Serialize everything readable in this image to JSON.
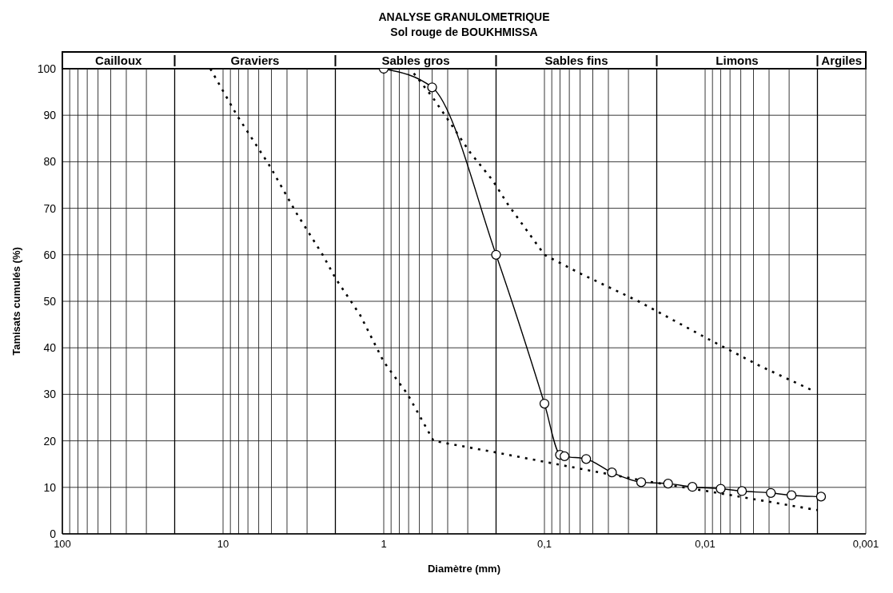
{
  "chart_data": {
    "type": "line",
    "title": "ANALYSE GRANULOMETRIQUE",
    "subtitle": "Sol rouge de BOUKHMISSA",
    "xlabel": "Diamètre (mm)",
    "ylabel": "Tamisats cumulés (%)",
    "log": "x",
    "xlim": [
      100,
      0.001
    ],
    "ylim": [
      0,
      100
    ],
    "xticks": [
      {
        "value": 100,
        "label": "100"
      },
      {
        "value": 90,
        "label": null
      },
      {
        "value": 80,
        "label": null
      },
      {
        "value": 70,
        "label": null
      },
      {
        "value": 60,
        "label": null
      },
      {
        "value": 50,
        "label": null
      },
      {
        "value": 40,
        "label": null
      },
      {
        "value": 30,
        "label": null
      },
      {
        "value": 10,
        "label": "10"
      },
      {
        "value": 9,
        "label": null
      },
      {
        "value": 8,
        "label": null
      },
      {
        "value": 7,
        "label": null
      },
      {
        "value": 6,
        "label": null
      },
      {
        "value": 5,
        "label": null
      },
      {
        "value": 4,
        "label": null
      },
      {
        "value": 3,
        "label": null
      },
      {
        "value": 1,
        "label": "1"
      },
      {
        "value": 0.9,
        "label": null
      },
      {
        "value": 0.8,
        "label": null
      },
      {
        "value": 0.7,
        "label": null
      },
      {
        "value": 0.6,
        "label": null
      },
      {
        "value": 0.5,
        "label": null
      },
      {
        "value": 0.4,
        "label": null
      },
      {
        "value": 0.3,
        "label": null
      },
      {
        "value": 0.1,
        "label": "0,1"
      },
      {
        "value": 0.09,
        "label": null
      },
      {
        "value": 0.08,
        "label": null
      },
      {
        "value": 0.07,
        "label": null
      },
      {
        "value": 0.06,
        "label": null
      },
      {
        "value": 0.05,
        "label": null
      },
      {
        "value": 0.04,
        "label": null
      },
      {
        "value": 0.03,
        "label": null
      },
      {
        "value": 0.01,
        "label": "0,01"
      },
      {
        "value": 0.009,
        "label": null
      },
      {
        "value": 0.008,
        "label": null
      },
      {
        "value": 0.007,
        "label": null
      },
      {
        "value": 0.006,
        "label": null
      },
      {
        "value": 0.005,
        "label": null
      },
      {
        "value": 0.004,
        "label": null
      },
      {
        "value": 0.003,
        "label": null
      },
      {
        "value": 0.001,
        "label": "0,001"
      }
    ],
    "yticks": [
      0,
      10,
      20,
      30,
      40,
      50,
      60,
      70,
      80,
      90,
      100
    ],
    "grid": true,
    "annotations": [
      "Cailloux",
      "Graviers",
      "Sables gros",
      "Sables fins",
      "Limons",
      "Argiles"
    ],
    "ref_lines": [
      {
        "axis": "x",
        "value": 20,
        "color": "#000000"
      },
      {
        "axis": "x",
        "value": 2,
        "color": "#000000"
      },
      {
        "axis": "x",
        "value": 0.2,
        "color": "#000000"
      },
      {
        "axis": "x",
        "value": 0.02,
        "color": "#000000"
      },
      {
        "axis": "x",
        "value": 0.002,
        "color": "#000000"
      }
    ],
    "series": [
      {
        "color": "#000000",
        "marker": "none",
        "line_style": "dotted",
        "x": [
          12,
          8.2,
          5.1,
          3.5,
          2.4,
          2,
          1.4,
          1,
          0.71,
          0.49,
          0.2,
          0.1,
          0.047,
          0.023,
          0.009,
          0.0037,
          0.002
        ],
        "values": [
          100,
          90,
          79,
          69,
          60,
          55,
          47,
          37,
          30,
          20,
          17.5,
          15.5,
          13.3,
          11.3,
          9,
          6.7,
          5.1
        ]
      },
      {
        "color": "#000000",
        "marker": "none",
        "line_style": "dotted",
        "x": [
          0.65,
          0.5,
          0.38,
          0.29,
          0.21,
          0.17,
          0.1,
          0.06,
          0.026,
          0.0097,
          0.0045,
          0.0022
        ],
        "values": [
          99,
          94,
          88,
          82,
          76,
          71,
          60,
          56,
          50,
          42,
          36,
          31
        ]
      },
      {
        "color": "#000000",
        "marker": "circle",
        "line_style": "solid",
        "x": [
          1,
          0.5,
          0.2,
          0.1,
          0.08,
          0.075,
          0.055,
          0.038,
          0.025,
          0.017,
          0.012,
          0.008,
          0.0059,
          0.0039,
          0.0029,
          0.0019
        ],
        "values": [
          100,
          96,
          60,
          28,
          17,
          16.7,
          16.1,
          13.2,
          11.1,
          10.8,
          10.1,
          9.7,
          9.2,
          8.8,
          8.3,
          8
        ]
      }
    ]
  }
}
